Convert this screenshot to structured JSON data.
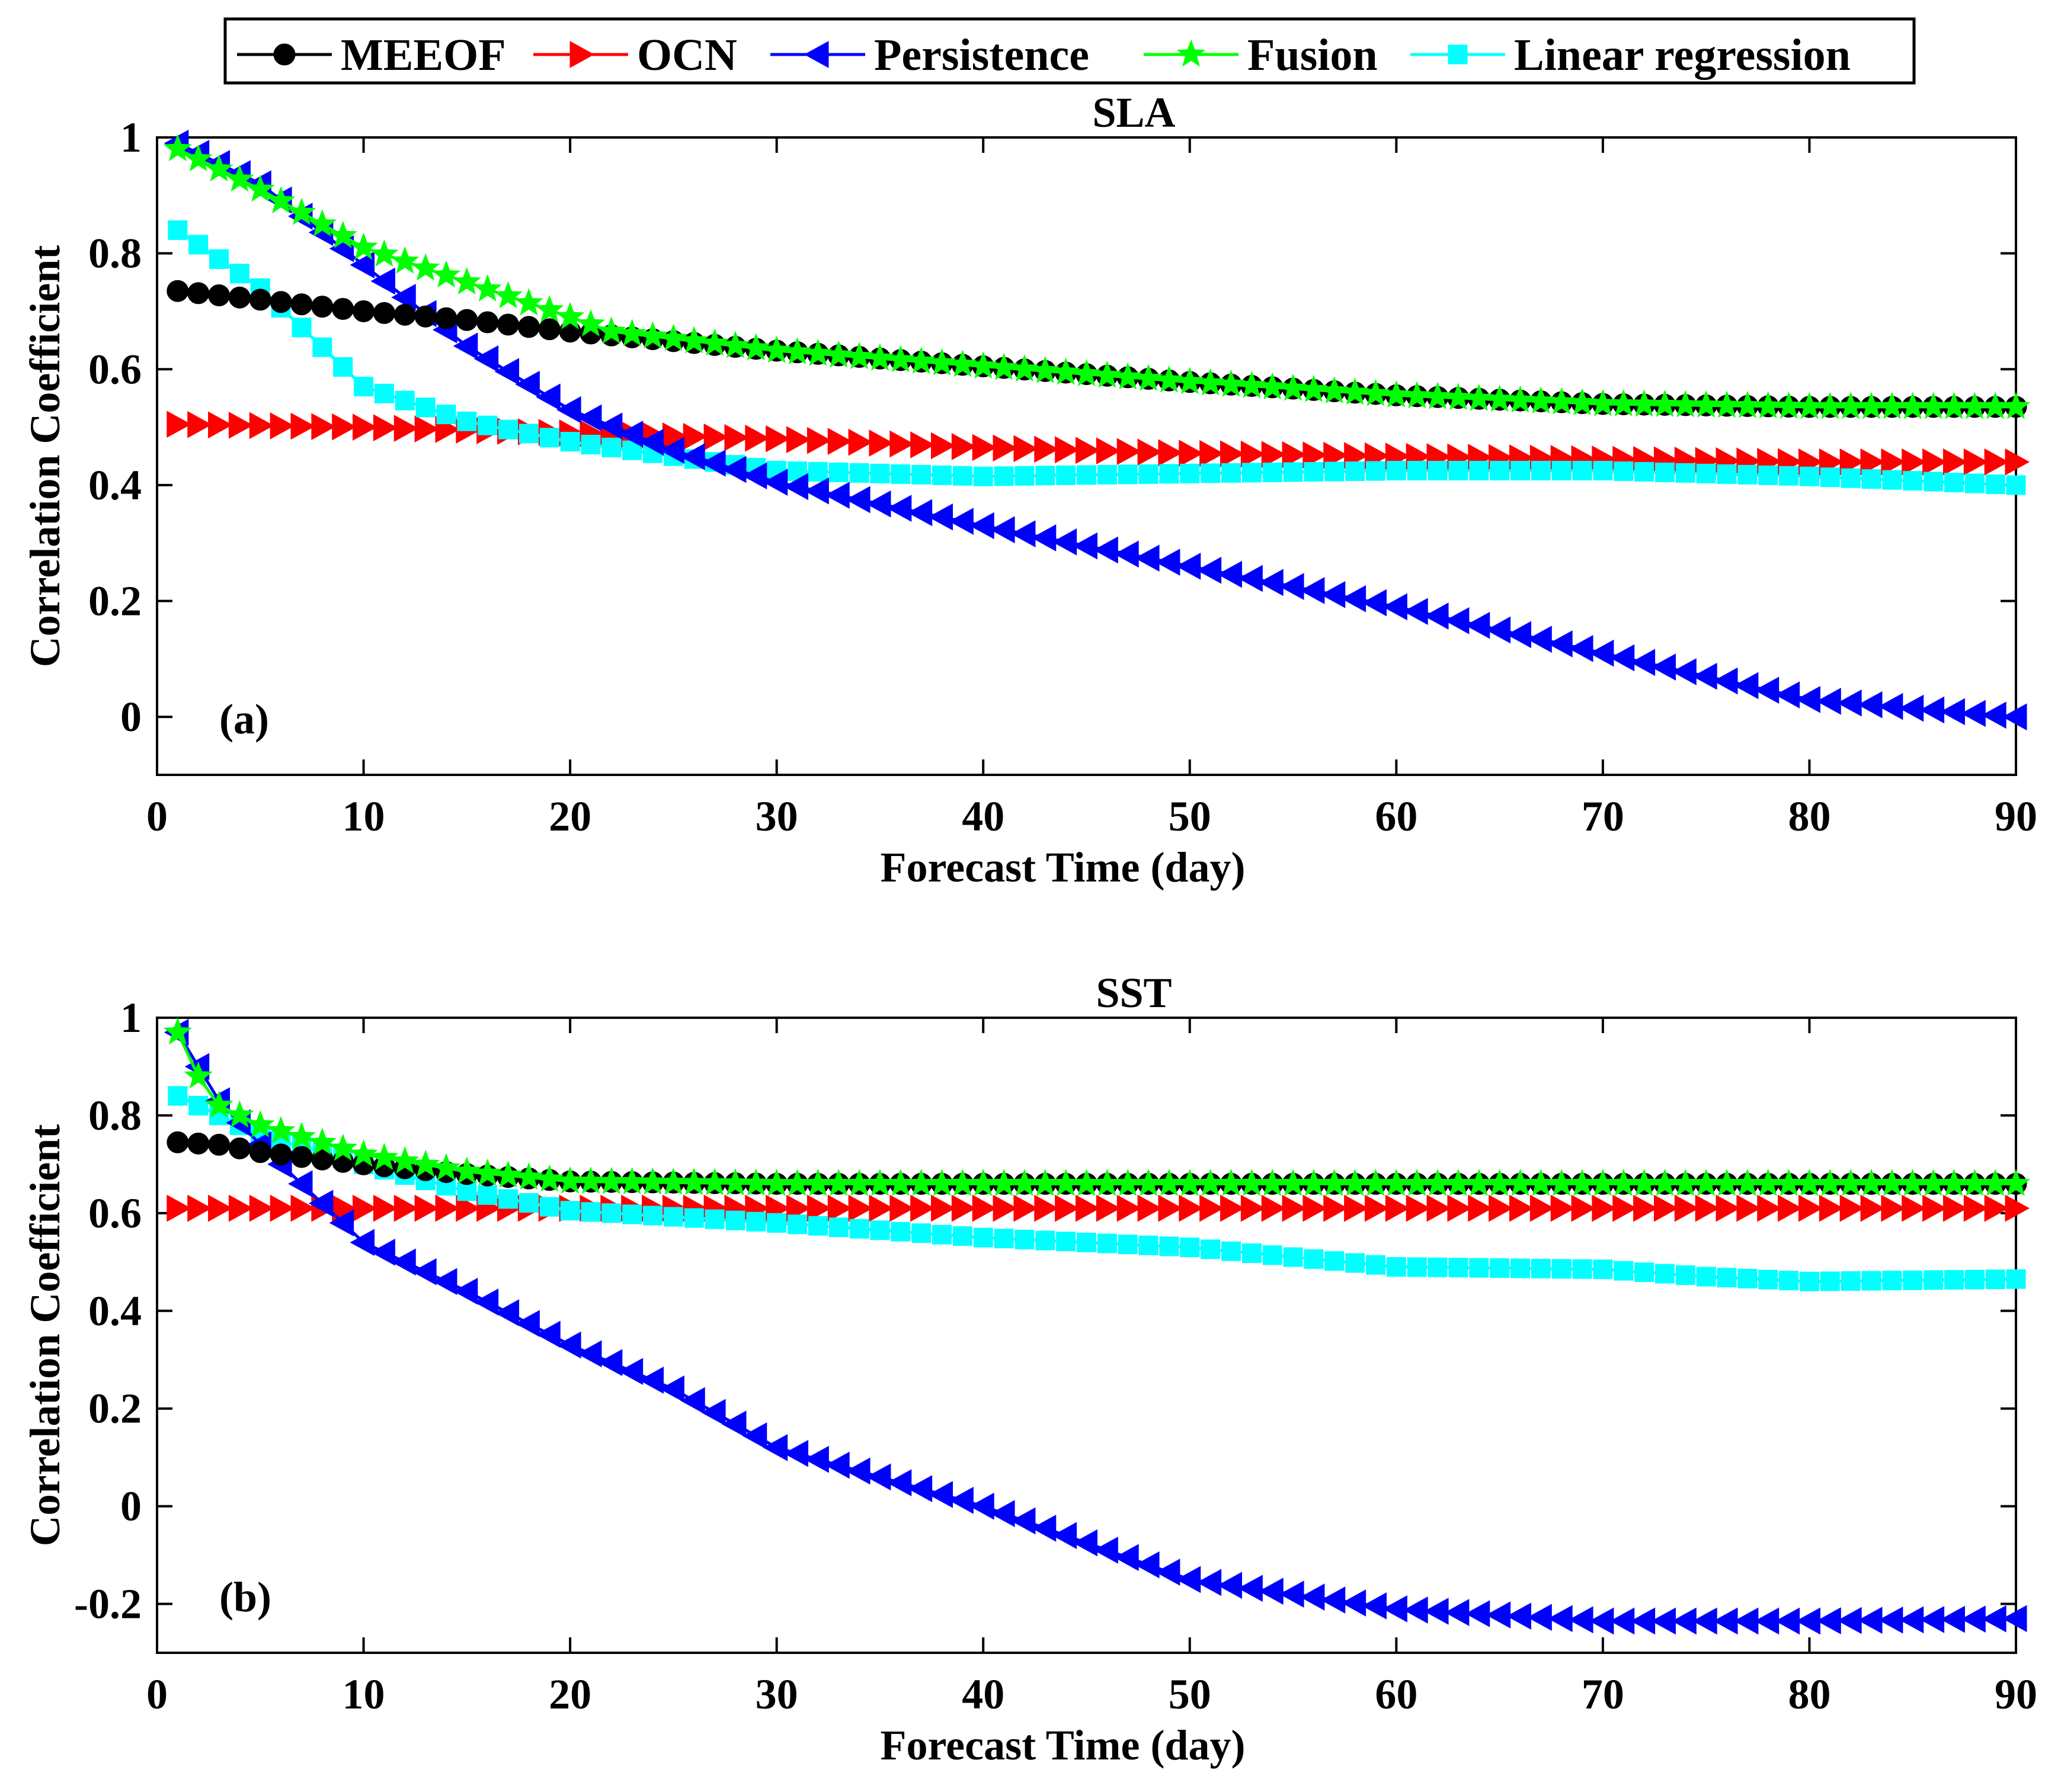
{
  "legend": [
    {
      "name": "MEEOF",
      "color": "#000000",
      "marker": "circle"
    },
    {
      "name": "OCN",
      "color": "#ff0000",
      "marker": "triangle-right"
    },
    {
      "name": "Persistence",
      "color": "#0000ff",
      "marker": "triangle-left"
    },
    {
      "name": "Fusion",
      "color": "#00ff00",
      "marker": "pentagram"
    },
    {
      "name": "Linear regression",
      "color": "#00ffff",
      "marker": "square"
    }
  ],
  "chart_data": [
    {
      "type": "line",
      "title": "SLA",
      "panel_label": "(a)",
      "xlabel": "Forecast Time (day)",
      "ylabel": "Correlation Coefficient",
      "xlim": [
        0,
        90
      ],
      "ylim": [
        -0.1,
        1
      ],
      "xticks": [
        0,
        10,
        20,
        30,
        40,
        50,
        60,
        70,
        80,
        90
      ],
      "xtick_labels": [
        "0",
        "10",
        "20",
        "30",
        "40",
        "50",
        "60",
        "70",
        "80",
        "90"
      ],
      "yticks": [
        0,
        0.2,
        0.4,
        0.6,
        0.8,
        1
      ],
      "ytick_labels": [
        "0",
        "0.2",
        "0.4",
        "0.6",
        "0.8",
        "1"
      ],
      "series_keys": [
        {
          "name": "MEEOF",
          "key": [
            [
              1,
              0.735
            ],
            [
              5,
              0.72
            ],
            [
              10,
              0.7
            ],
            [
              15,
              0.685
            ],
            [
              20,
              0.665
            ],
            [
              30,
              0.632
            ],
            [
              40,
              0.605
            ],
            [
              50,
              0.578
            ],
            [
              60,
              0.555
            ],
            [
              70,
              0.54
            ],
            [
              80,
              0.535
            ],
            [
              90,
              0.535
            ]
          ]
        },
        {
          "name": "OCN",
          "key": [
            [
              1,
              0.505
            ],
            [
              10,
              0.5
            ],
            [
              20,
              0.49
            ],
            [
              30,
              0.48
            ],
            [
              40,
              0.465
            ],
            [
              50,
              0.455
            ],
            [
              60,
              0.45
            ],
            [
              70,
              0.445
            ],
            [
              80,
              0.44
            ],
            [
              90,
              0.44
            ]
          ]
        },
        {
          "name": "Persistence",
          "key": [
            [
              1,
              0.99
            ],
            [
              5,
              0.92
            ],
            [
              10,
              0.78
            ],
            [
              15,
              0.64
            ],
            [
              20,
              0.53
            ],
            [
              25,
              0.46
            ],
            [
              30,
              0.405
            ],
            [
              40,
              0.33
            ],
            [
              50,
              0.26
            ],
            [
              60,
              0.19
            ],
            [
              70,
              0.11
            ],
            [
              80,
              0.03
            ],
            [
              90,
              0.0
            ]
          ]
        },
        {
          "name": "Fusion",
          "key": [
            [
              1,
              0.98
            ],
            [
              5,
              0.91
            ],
            [
              10,
              0.81
            ],
            [
              15,
              0.75
            ],
            [
              20,
              0.69
            ],
            [
              22,
              0.665
            ],
            [
              30,
              0.632
            ],
            [
              40,
              0.605
            ],
            [
              50,
              0.578
            ],
            [
              60,
              0.555
            ],
            [
              70,
              0.54
            ],
            [
              80,
              0.535
            ],
            [
              90,
              0.535
            ]
          ]
        },
        {
          "name": "Linear regression",
          "key": [
            [
              1,
              0.84
            ],
            [
              5,
              0.74
            ],
            [
              10,
              0.57
            ],
            [
              15,
              0.51
            ],
            [
              20,
              0.475
            ],
            [
              25,
              0.45
            ],
            [
              30,
              0.425
            ],
            [
              40,
              0.415
            ],
            [
              50,
              0.42
            ],
            [
              60,
              0.425
            ],
            [
              70,
              0.425
            ],
            [
              80,
              0.415
            ],
            [
              90,
              0.4
            ]
          ]
        }
      ]
    },
    {
      "type": "line",
      "title": "SST",
      "panel_label": "(b)",
      "xlabel": "Forecast Time (day)",
      "ylabel": "Correlation Coefficient",
      "xlim": [
        0,
        90
      ],
      "ylim": [
        -0.3,
        1
      ],
      "xticks": [
        0,
        10,
        20,
        30,
        40,
        50,
        60,
        70,
        80,
        90
      ],
      "xtick_labels": [
        "0",
        "10",
        "20",
        "30",
        "40",
        "50",
        "60",
        "70",
        "80",
        "90"
      ],
      "yticks": [
        -0.2,
        0,
        0.2,
        0.4,
        0.6,
        0.8,
        1
      ],
      "ytick_labels": [
        "-0.2",
        "0",
        "0.2",
        "0.4",
        "0.6",
        "0.8",
        "1"
      ],
      "series_keys": [
        {
          "name": "MEEOF",
          "key": [
            [
              1,
              0.745
            ],
            [
              3,
              0.74
            ],
            [
              5,
              0.725
            ],
            [
              10,
              0.7
            ],
            [
              15,
              0.68
            ],
            [
              20,
              0.665
            ],
            [
              30,
              0.66
            ],
            [
              60,
              0.66
            ],
            [
              90,
              0.66
            ]
          ]
        },
        {
          "name": "OCN",
          "key": [
            [
              1,
              0.61
            ],
            [
              10,
              0.61
            ],
            [
              20,
              0.61
            ],
            [
              30,
              0.61
            ],
            [
              60,
              0.61
            ],
            [
              90,
              0.61
            ]
          ]
        },
        {
          "name": "Persistence",
          "key": [
            [
              1,
              0.97
            ],
            [
              3,
              0.83
            ],
            [
              5,
              0.74
            ],
            [
              10,
              0.54
            ],
            [
              15,
              0.44
            ],
            [
              20,
              0.33
            ],
            [
              25,
              0.24
            ],
            [
              30,
              0.12
            ],
            [
              40,
              0.0
            ],
            [
              50,
              -0.15
            ],
            [
              60,
              -0.21
            ],
            [
              70,
              -0.235
            ],
            [
              80,
              -0.235
            ],
            [
              90,
              -0.23
            ]
          ]
        },
        {
          "name": "Fusion",
          "key": [
            [
              1,
              0.97
            ],
            [
              2,
              0.88
            ],
            [
              3,
              0.82
            ],
            [
              5,
              0.78
            ],
            [
              10,
              0.72
            ],
            [
              15,
              0.685
            ],
            [
              20,
              0.665
            ],
            [
              30,
              0.66
            ],
            [
              60,
              0.66
            ],
            [
              90,
              0.66
            ]
          ]
        },
        {
          "name": "Linear regression",
          "key": [
            [
              1,
              0.84
            ],
            [
              5,
              0.76
            ],
            [
              10,
              0.7
            ],
            [
              15,
              0.645
            ],
            [
              20,
              0.605
            ],
            [
              30,
              0.58
            ],
            [
              40,
              0.55
            ],
            [
              50,
              0.53
            ],
            [
              55,
              0.51
            ],
            [
              60,
              0.49
            ],
            [
              70,
              0.485
            ],
            [
              75,
              0.47
            ],
            [
              80,
              0.46
            ],
            [
              90,
              0.465
            ]
          ]
        }
      ]
    }
  ]
}
